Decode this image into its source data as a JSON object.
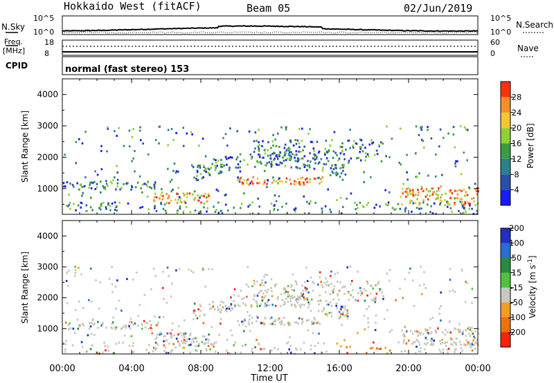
{
  "header": {
    "station": "Hokkaido West (fitACF)",
    "beam": "Beam 05",
    "date": "02/Jun/2019"
  },
  "strips": {
    "nsky_label": "N.Sky",
    "nsky_top": "10^5",
    "nsky_bottom": "10^0",
    "nsearch_label": "N.Search",
    "nsearch_top": "10^5",
    "nsearch_bottom": "10^0",
    "freq_label": "Freq.",
    "freq_unit": "[MHz]",
    "freq_top": "18",
    "freq_bottom": "8",
    "nave_label": "Nave",
    "nave_top": "60",
    "nave_bottom": "0",
    "cpid_label": "CPID",
    "cpid_text": "normal (fast stereo) 153"
  },
  "chart_data": [
    {
      "type": "heatmap",
      "panel": "power",
      "ylabel": "Slant Range [km]",
      "ylim": [
        180,
        4500
      ],
      "yticks": [
        "1000",
        "2000",
        "3000",
        "4000"
      ],
      "xlim": [
        0,
        24
      ],
      "xticks": [
        "00:00",
        "04:00",
        "08:00",
        "12:00",
        "16:00",
        "20:00",
        "00:00"
      ],
      "colorbar": {
        "label": "Power [dB]",
        "ticks": [
          "4",
          "8",
          "12",
          "16",
          "20",
          "24",
          "28"
        ],
        "colors": [
          "#1a1aff",
          "#2a4fa8",
          "#2e7f8c",
          "#3a9a45",
          "#8fcf3a",
          "#f0c830",
          "#f09030",
          "#ff3010"
        ]
      }
    },
    {
      "type": "heatmap",
      "panel": "velocity",
      "ylabel": "Slant Range [km]",
      "ylim": [
        180,
        4500
      ],
      "yticks": [
        "1000",
        "2000",
        "3000",
        "4000"
      ],
      "xlim": [
        0,
        24
      ],
      "xticks": [
        "00:00",
        "04:00",
        "08:00",
        "12:00",
        "16:00",
        "20:00",
        "00:00"
      ],
      "xlabel": "Time UT",
      "colorbar": {
        "label": "Velocity [m s^-1]",
        "ticks": [
          "200",
          "100",
          "50",
          "15",
          "-15",
          "-50",
          "-100",
          "-200"
        ],
        "colors": [
          "#2030c0",
          "#2a6fd0",
          "#2a8a40",
          "#55c040",
          "#c8c8c0",
          "#f0a020",
          "#f07010",
          "#ff2010"
        ]
      }
    }
  ]
}
